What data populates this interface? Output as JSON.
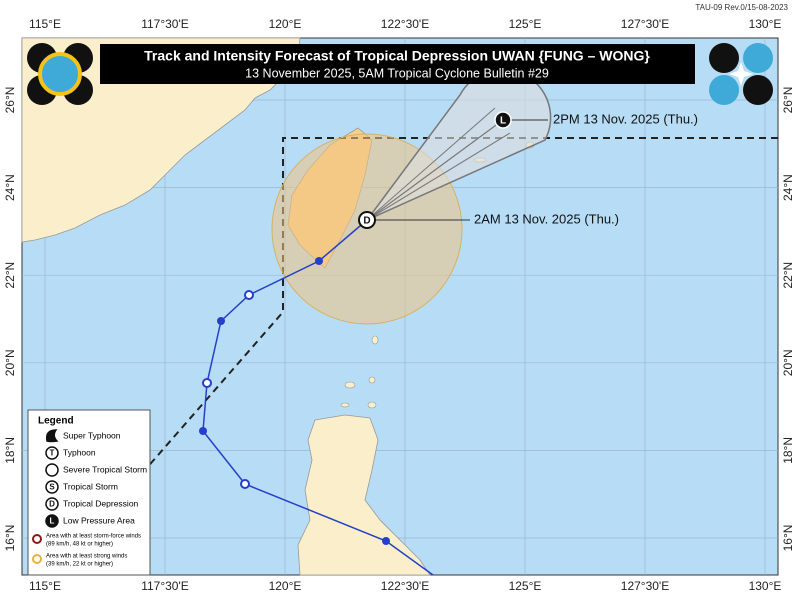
{
  "header": {
    "title": "Track and Intensity Forecast of Tropical Depression UWAN {FUNG – WONG}",
    "subtitle": "13 November 2025, 5AM Tropical Cyclone Bulletin #29",
    "revision": "TAU-09 Rev.0/15-08-2023"
  },
  "axes": {
    "lon_labels": [
      "115°E",
      "117°30'E",
      "120°E",
      "122°30'E",
      "125°E",
      "127°30'E",
      "130°E"
    ],
    "lat_labels": [
      "26°N",
      "24°N",
      "22°N",
      "20°N",
      "18°N",
      "16°N"
    ]
  },
  "forecast": [
    {
      "symbol": "L",
      "label": "2PM 13 Nov. 2025 (Thu.)"
    },
    {
      "symbol": "D",
      "label": "2AM 13 Nov. 2025 (Thu.)"
    }
  ],
  "legend": {
    "title": "Legend",
    "items": [
      {
        "label": "Super Typhoon"
      },
      {
        "symbol": "T",
        "label": "Typhoon"
      },
      {
        "label": "Severe Tropical Storm"
      },
      {
        "symbol": "S",
        "label": "Tropical Storm"
      },
      {
        "symbol": "D",
        "label": "Tropical Depression"
      },
      {
        "symbol": "L",
        "label": "Low Pressure Area"
      }
    ],
    "areas": [
      {
        "label": "Area with at least storm-force winds",
        "note": "(89 km/h, 48 kt or higher)"
      },
      {
        "label": "Area with at least strong winds",
        "note": "(39 km/h, 22 kt or higher)"
      }
    ]
  }
}
